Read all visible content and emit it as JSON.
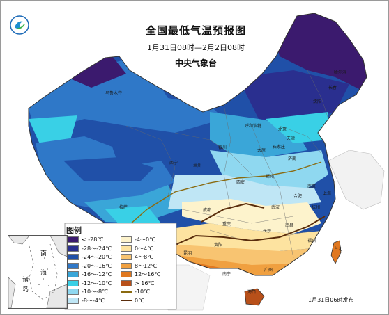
{
  "title": "全国最低气温预报图",
  "subtitle": "1月31日08时—2月2日08时",
  "agency": "中央气象台",
  "legend": {
    "title": "图例",
    "left_items": [
      {
        "label": "< -28℃",
        "color": "#3b1a6e"
      },
      {
        "label": "-28～-24℃",
        "color": "#2a2f8f"
      },
      {
        "label": "-24～-20℃",
        "color": "#2050a8"
      },
      {
        "label": "-20～-16℃",
        "color": "#2f78c8"
      },
      {
        "label": "-16～-12℃",
        "color": "#3aa6d8"
      },
      {
        "label": "-12～-10℃",
        "color": "#39d0e6"
      },
      {
        "label": "-10～-8℃",
        "color": "#8fd8f0"
      },
      {
        "label": "-8～-4℃",
        "color": "#bfe6f5"
      }
    ],
    "right_items": [
      {
        "label": "-4～0℃",
        "color": "#fdf3cc"
      },
      {
        "label": "0～4℃",
        "color": "#fde3a0"
      },
      {
        "label": "4～8℃",
        "color": "#f8c471"
      },
      {
        "label": "8～12℃",
        "color": "#f0a040"
      },
      {
        "label": "12～16℃",
        "color": "#e07820"
      },
      {
        "label": "> 16℃",
        "color": "#b8501a"
      }
    ],
    "line_items": [
      {
        "label": "-10℃",
        "color": "#8a6a10"
      },
      {
        "label": "0℃",
        "color": "#5a2d0c"
      }
    ]
  },
  "inset_labels": {
    "south": "南",
    "sea": "海",
    "islands1": "诸",
    "islands2": "岛"
  },
  "issued": "1月31日06时发布",
  "cities": [
    "乌鲁木齐",
    "哈尔滨",
    "长春",
    "沈阳",
    "呼和浩特",
    "北京",
    "天津",
    "石家庄",
    "太原",
    "银川",
    "济南",
    "兰州",
    "西宁",
    "郑州",
    "西安",
    "拉萨",
    "成都",
    "南京",
    "合肥",
    "武汉",
    "上海",
    "杭州",
    "重庆",
    "长沙",
    "南昌",
    "贵阳",
    "福州",
    "台北",
    "昆明",
    "南宁",
    "广州",
    "海口"
  ]
}
